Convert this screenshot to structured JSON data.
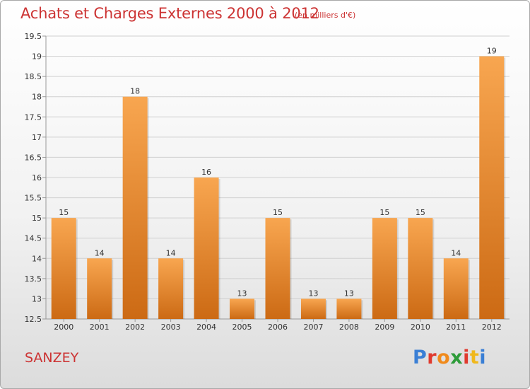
{
  "header": {
    "title": "Achats et Charges Externes 2000 à 2012",
    "subtitle": "(en milliers d'€)"
  },
  "footer": {
    "town": "SANZEY",
    "logo": {
      "text": "Proxiti",
      "colors": [
        "#3a7fd5",
        "#e03a2e",
        "#f08a1c",
        "#2e9c3a",
        "#e03a2e",
        "#f0b81c",
        "#3a7fd5"
      ]
    }
  },
  "colors": {
    "bar_top": "#f8a650",
    "bar_bottom": "#cc6a14",
    "grid": "#d0d0d0",
    "axis": "#999999"
  },
  "chart_data": {
    "type": "bar",
    "title": "Achats et Charges Externes 2000 à 2012",
    "subtitle": "(en milliers d'€)",
    "categories": [
      "2000",
      "2001",
      "2002",
      "2003",
      "2004",
      "2005",
      "2006",
      "2007",
      "2008",
      "2009",
      "2010",
      "2011",
      "2012"
    ],
    "values": [
      15,
      14,
      18,
      14,
      16,
      13,
      15,
      13,
      13,
      15,
      15,
      14,
      19
    ],
    "ylim": [
      12.5,
      19.5
    ],
    "yticks": [
      "12.5",
      "13",
      "13.5",
      "14",
      "14.5",
      "15",
      "15.5",
      "16",
      "16.5",
      "17",
      "17.5",
      "18",
      "18.5",
      "19",
      "19.5"
    ],
    "grid": true,
    "xlabel": "",
    "ylabel": ""
  }
}
